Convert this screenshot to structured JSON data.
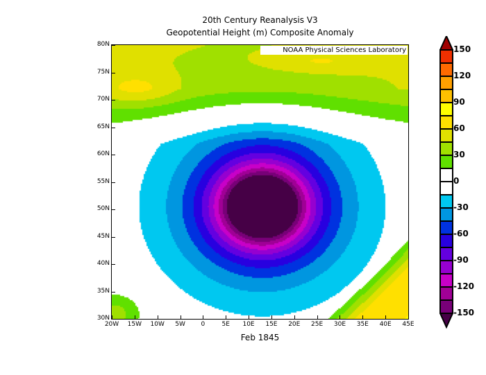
{
  "title_line1": "20th Century Reanalysis V3",
  "title_line2": "Geopotential Height (m) Composite Anomaly",
  "credit": "NOAA Physical Sciences Laboratory",
  "date_label": "Feb 1845",
  "chart_data": {
    "type": "heatmap",
    "variable": "Geopotential Height (m) Composite Anomaly",
    "xlim": [
      -20,
      45
    ],
    "ylim": [
      30,
      80
    ],
    "x_ticks": [
      "20W",
      "15W",
      "10W",
      "5W",
      "0",
      "5E",
      "10E",
      "15E",
      "20E",
      "25E",
      "30E",
      "35E",
      "40E",
      "45E"
    ],
    "y_ticks": [
      "30N",
      "35N",
      "40N",
      "45N",
      "50N",
      "55N",
      "60N",
      "65N",
      "70N",
      "75N",
      "80N"
    ],
    "features": {
      "minimum_center": {
        "lon": 13,
        "lat": 50,
        "value_below": -150
      },
      "positive_regions": [
        "north of 65N (+30 to +60)",
        "southeast 35E-45E 30N-40N (+60 to +75)"
      ]
    },
    "colorbar": {
      "levels": [
        -150,
        -135,
        -120,
        -105,
        -90,
        -75,
        -60,
        -45,
        -30,
        -15,
        0,
        15,
        30,
        45,
        60,
        75,
        90,
        105,
        120,
        135,
        150
      ],
      "tick_labels": [
        "150",
        "120",
        "90",
        "60",
        "30",
        "0",
        "-30",
        "-60",
        "-90",
        "-120",
        "-150"
      ],
      "colors": [
        "#460046",
        "#780078",
        "#a00096",
        "#c800c8",
        "#9600d0",
        "#6400e0",
        "#2800e0",
        "#0032e0",
        "#0096e0",
        "#00c8f0",
        "#ffffff",
        "#ffffff",
        "#60e000",
        "#a0e000",
        "#e0e000",
        "#ffe000",
        "#ffff00",
        "#ffc000",
        "#ffa000",
        "#ff6a00",
        "#f03000",
        "#a00000"
      ]
    }
  }
}
